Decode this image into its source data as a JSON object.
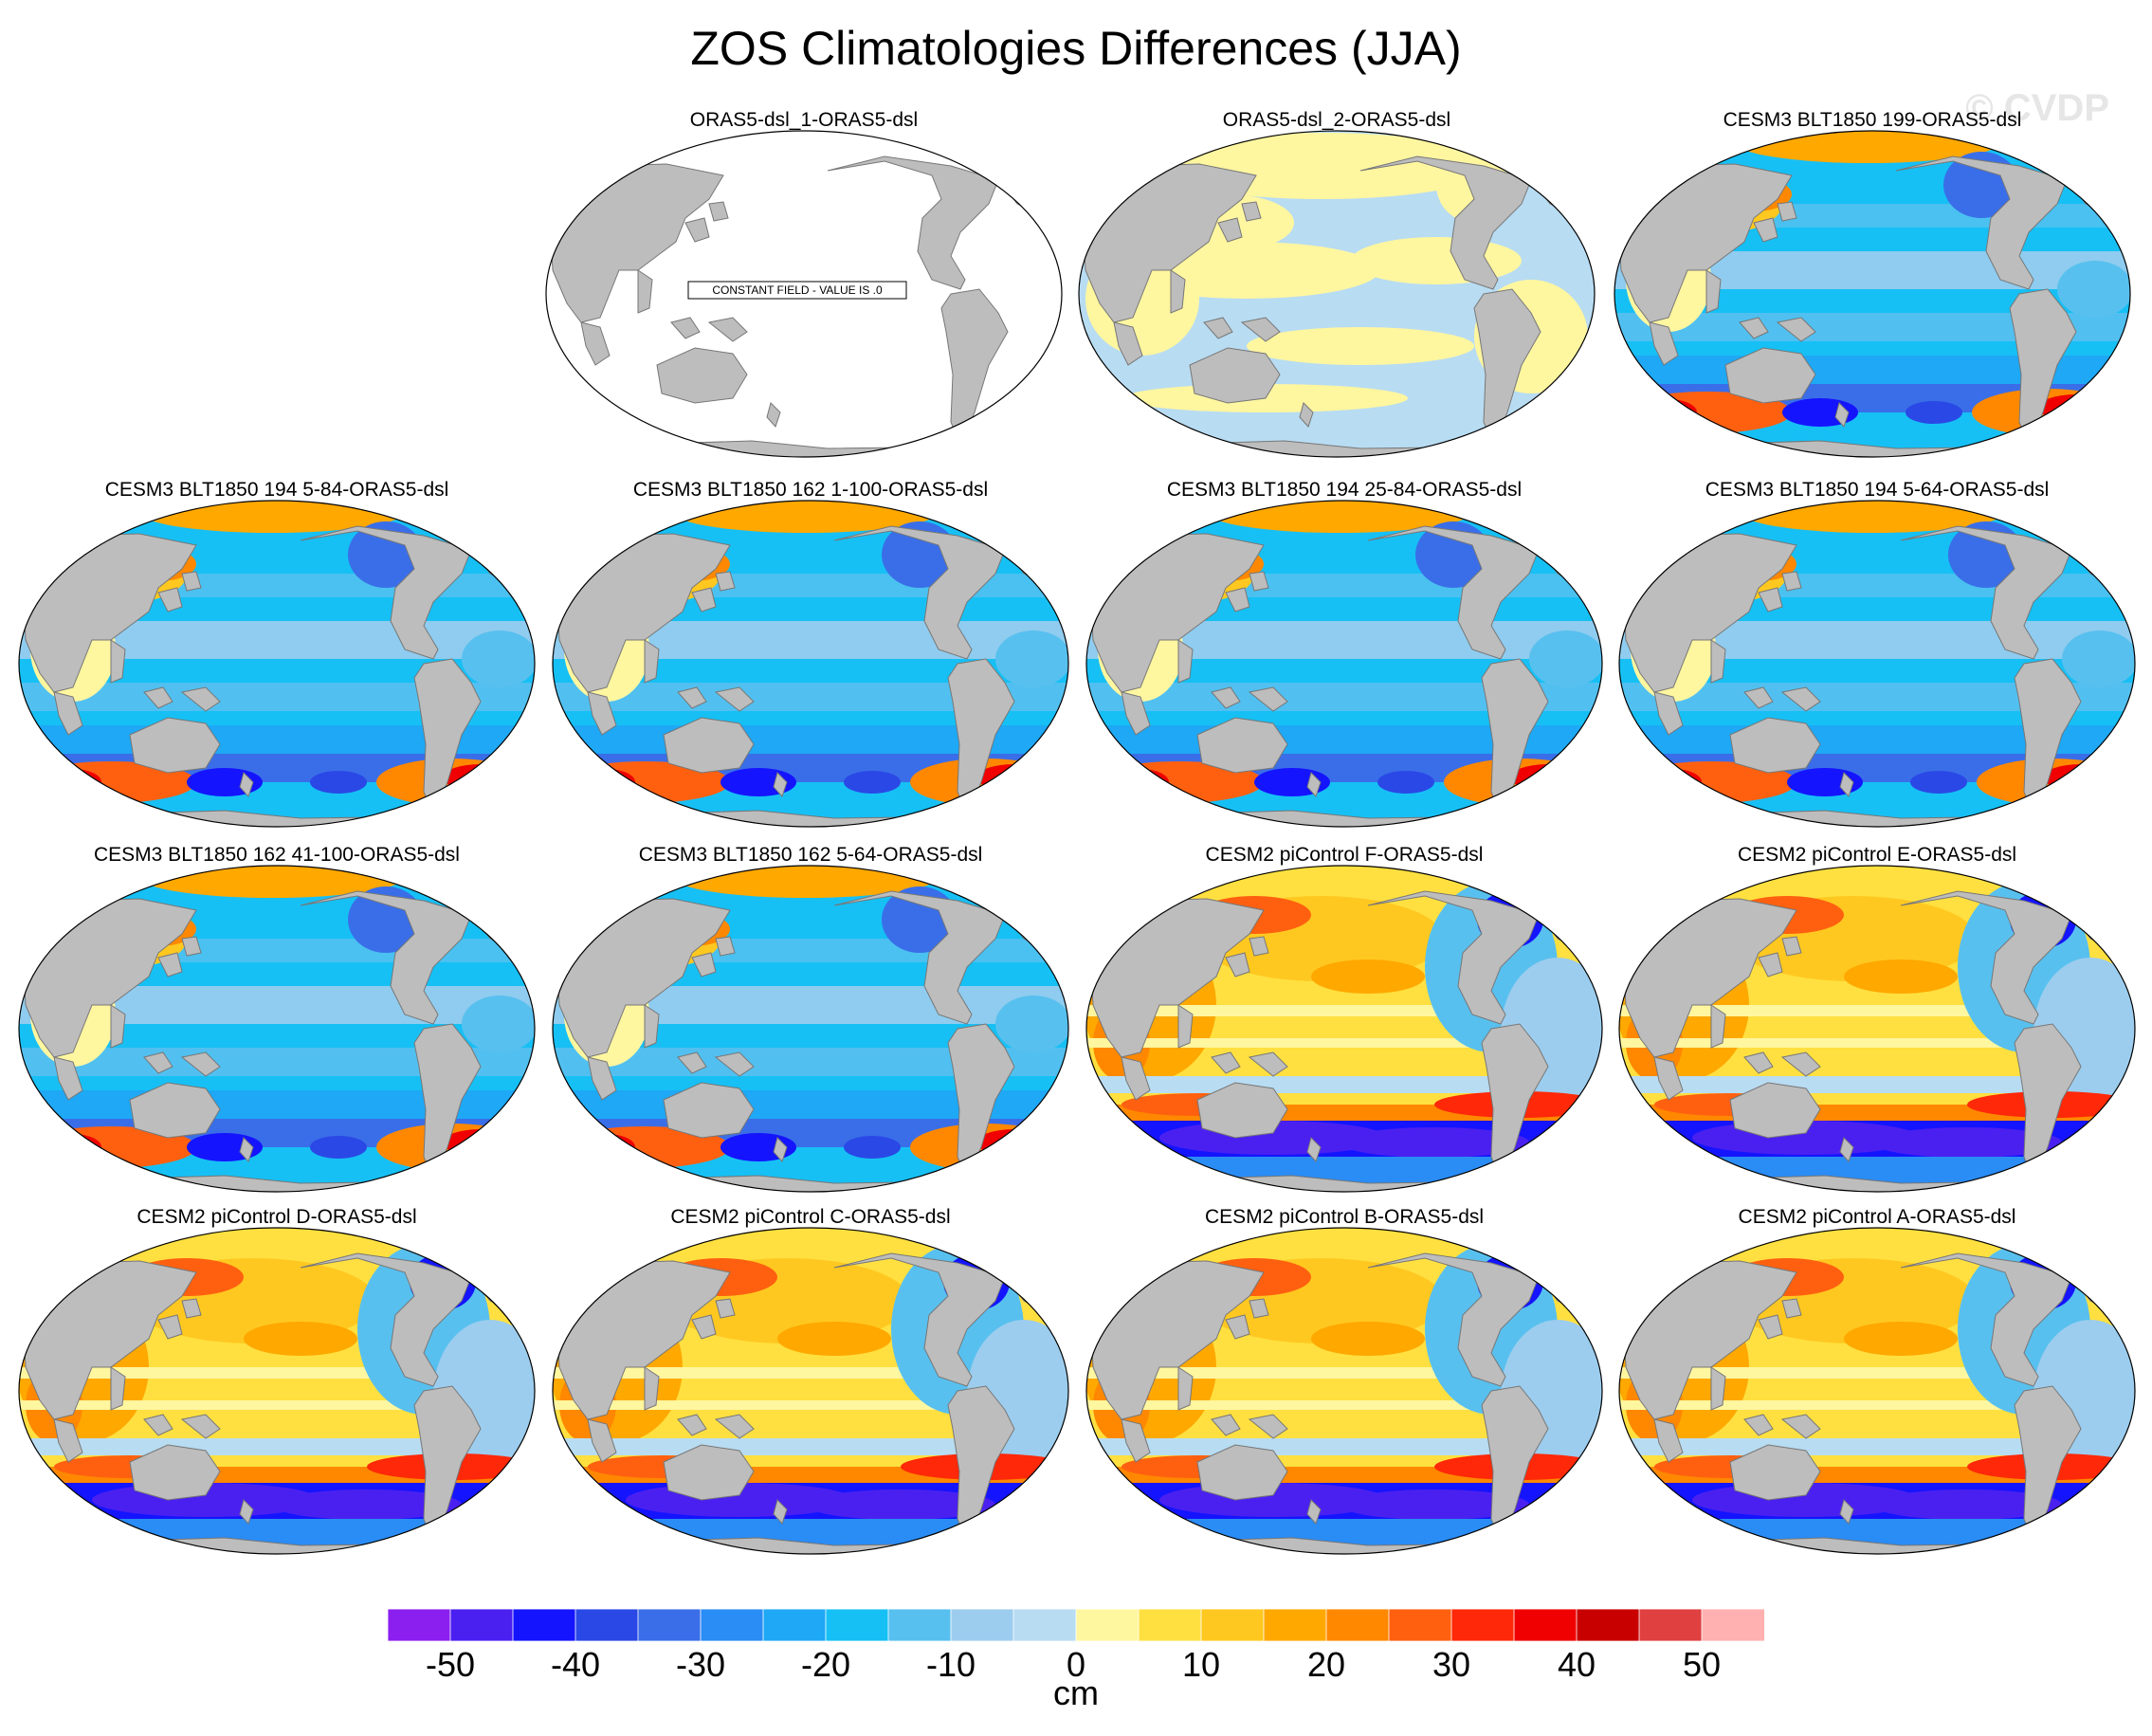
{
  "title": "ZOS Climatologies Differences (JJA)",
  "watermark": "© CVDP",
  "constant_note": "CONSTANT FIELD - VALUE IS .0",
  "panels": [
    {
      "title": "ORAS5-dsl_1-ORAS5-dsl",
      "pattern": "constant"
    },
    {
      "title": "ORAS5-dsl_2-ORAS5-dsl",
      "pattern": "near_zero"
    },
    {
      "title": "CESM3 BLT1850 199-ORAS5-dsl",
      "pattern": "cesm3"
    },
    {
      "title": "CESM3 BLT1850 194 5-84-ORAS5-dsl",
      "pattern": "cesm3"
    },
    {
      "title": "CESM3 BLT1850 162 1-100-ORAS5-dsl",
      "pattern": "cesm3"
    },
    {
      "title": "CESM3 BLT1850 194 25-84-ORAS5-dsl",
      "pattern": "cesm3"
    },
    {
      "title": "CESM3 BLT1850 194 5-64-ORAS5-dsl",
      "pattern": "cesm3"
    },
    {
      "title": "CESM3 BLT1850 162 41-100-ORAS5-dsl",
      "pattern": "cesm3"
    },
    {
      "title": "CESM3 BLT1850 162 5-64-ORAS5-dsl",
      "pattern": "cesm3"
    },
    {
      "title": "CESM2 piControl F-ORAS5-dsl",
      "pattern": "cesm2"
    },
    {
      "title": "CESM2 piControl E-ORAS5-dsl",
      "pattern": "cesm2"
    },
    {
      "title": "CESM2 piControl D-ORAS5-dsl",
      "pattern": "cesm2"
    },
    {
      "title": "CESM2 piControl C-ORAS5-dsl",
      "pattern": "cesm2"
    },
    {
      "title": "CESM2 piControl B-ORAS5-dsl",
      "pattern": "cesm2"
    },
    {
      "title": "CESM2 piControl A-ORAS5-dsl",
      "pattern": "cesm2"
    }
  ],
  "colorbar": {
    "unit": "cm",
    "tick_labels": [
      "-50",
      "-40",
      "-30",
      "-20",
      "-10",
      "0",
      "10",
      "20",
      "30",
      "40",
      "50"
    ],
    "colors": [
      "#8b1ff0",
      "#4a20f0",
      "#1414ff",
      "#2a48e6",
      "#3a6ee8",
      "#2a8cf5",
      "#1ea8f5",
      "#16c0f5",
      "#58c0ef",
      "#9ccdee",
      "#b8dcf2",
      "#fff6a0",
      "#ffe040",
      "#ffc820",
      "#ffa800",
      "#ff8800",
      "#ff6010",
      "#ff2808",
      "#f00000",
      "#c80000",
      "#e04040",
      "#ffb0b0"
    ]
  },
  "map_colors": {
    "land": "#bdbdbd",
    "constant_ocean": "#ffffff"
  }
}
